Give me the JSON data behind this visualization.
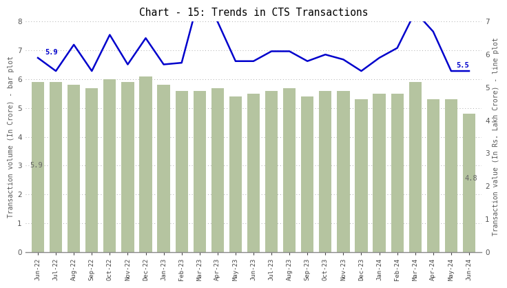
{
  "title": "Chart - 15: Trends in CTS Transactions",
  "categories": [
    "Jun-22",
    "Jul-22",
    "Aug-22",
    "Sep-22",
    "Oct-22",
    "Nov-22",
    "Dec-22",
    "Jan-23",
    "Feb-23",
    "Mar-23",
    "Apr-23",
    "May-23",
    "Jun-23",
    "Jul-23",
    "Aug-23",
    "Sep-23",
    "Oct-23",
    "Nov-23",
    "Dec-23",
    "Jan-24",
    "Feb-24",
    "Mar-24",
    "Apr-24",
    "May-24",
    "Jun-24"
  ],
  "bar_values": [
    5.9,
    5.9,
    5.8,
    5.7,
    6.0,
    5.9,
    6.1,
    5.8,
    5.6,
    5.6,
    5.7,
    5.4,
    5.5,
    5.6,
    5.7,
    5.4,
    5.6,
    5.6,
    5.3,
    5.5,
    5.5,
    5.9,
    5.3,
    5.3,
    4.8
  ],
  "line_values": [
    5.9,
    5.5,
    6.3,
    5.5,
    6.6,
    5.7,
    6.5,
    5.7,
    5.75,
    7.8,
    7.0,
    5.8,
    5.8,
    6.1,
    6.1,
    5.8,
    6.0,
    5.85,
    5.5,
    5.9,
    6.2,
    7.3,
    6.7,
    5.5,
    5.5
  ],
  "bar_color": "#b5c4a0",
  "line_color": "#0000cc",
  "bar_ylabel": "Transaction volume (In Crore) - bar plot",
  "line_ylabel": "Transaction value (In Rs. Lakh Crore) - line plot",
  "ylim_left": [
    0,
    8
  ],
  "ylim_right": [
    0,
    7
  ],
  "annotation_first_bar": "5.9",
  "annotation_last_bar": "4.8",
  "annotation_first_line": "5.9",
  "annotation_last_line": "5.5",
  "bg_color": "#ffffff",
  "grid_color": "#aaaaaa"
}
